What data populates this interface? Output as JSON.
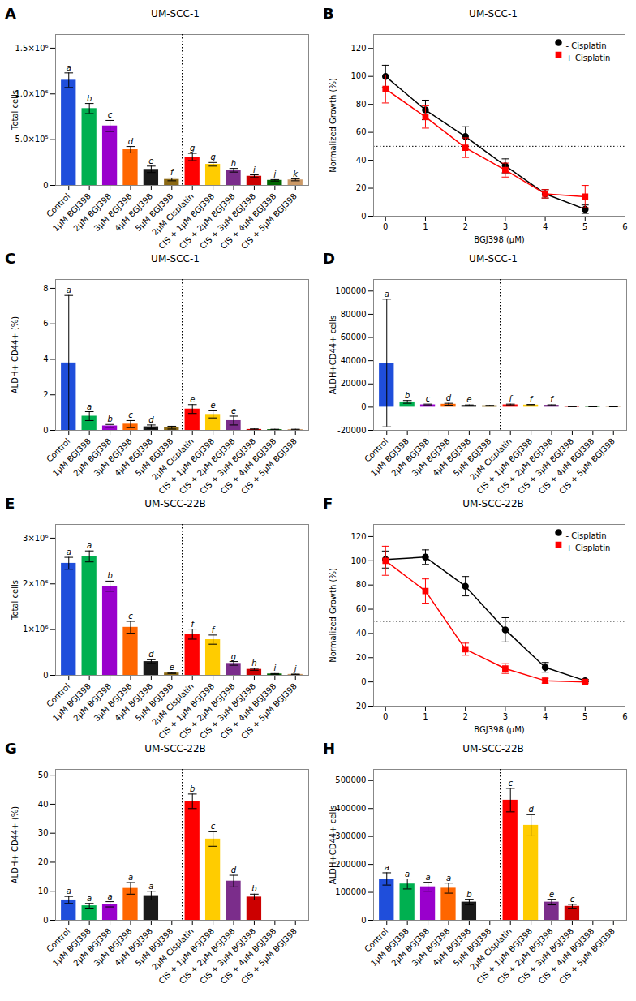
{
  "chart_data": [
    {
      "type": "bar",
      "panel_label": "A",
      "title": "UM-SCC-1",
      "ylabel": "Total cells",
      "ylim": [
        0,
        1650000
      ],
      "yticks": [
        0,
        {
          "value": 500000,
          "label": "5.0×10⁵"
        },
        {
          "value": 1000000,
          "label": "1.0×10⁶"
        },
        {
          "value": 1500000,
          "label": "1.5×10⁶"
        }
      ],
      "categories": [
        "Control",
        "1μM BGJ398",
        "2μM BGJ398",
        "3μM BGJ398",
        "4μM BGJ398",
        "5μM BGJ398",
        "2μM Cisplatin",
        "CIS + 1μM BGJ398",
        "CIS + 2μM BGJ398",
        "CIS + 3μM BGJ398",
        "CIS + 4μM BGJ398",
        "CIS + 5μM BGJ398"
      ],
      "values": [
        1150000,
        840000,
        650000,
        390000,
        175000,
        65000,
        310000,
        230000,
        165000,
        100000,
        55000,
        60000
      ],
      "errors": [
        80000,
        55000,
        60000,
        35000,
        35000,
        15000,
        40000,
        20000,
        20000,
        15000,
        8000,
        10000
      ],
      "colors": [
        "#1f4edb",
        "#00b050",
        "#9900cc",
        "#ff6600",
        "#1a1a1a",
        "#8b6914",
        "#ff0000",
        "#ffcc00",
        "#7b2d8b",
        "#cc0000",
        "#006600",
        "#cc9966"
      ],
      "letters": [
        "a",
        "b",
        "c",
        "d",
        "e",
        "f",
        "g",
        "g",
        "h",
        "i",
        "j",
        "k"
      ],
      "reference_x": 5.5
    },
    {
      "type": "line",
      "panel_label": "B",
      "title": "UM-SCC-1",
      "xlabel": "BGJ398 (μM)",
      "ylabel": "Normalized Growth (%)",
      "xlim": [
        -0.3,
        6
      ],
      "xticks": [
        0,
        1,
        2,
        3,
        4,
        5,
        6
      ],
      "ylim": [
        0,
        130
      ],
      "yticks": [
        0,
        20,
        40,
        60,
        80,
        100,
        120
      ],
      "reference_y": 50,
      "legend": "upper right",
      "series": [
        {
          "name": "- Cisplatin",
          "color": "#000000",
          "marker": "circle",
          "x": [
            0,
            1,
            2,
            3,
            4,
            5
          ],
          "values": [
            100,
            76,
            57,
            36,
            16,
            5
          ],
          "errors": [
            8,
            7,
            7,
            5,
            3,
            3
          ]
        },
        {
          "name": "+ Cisplatin",
          "color": "#ff0000",
          "marker": "square",
          "x": [
            0,
            1,
            2,
            3,
            4,
            5
          ],
          "values": [
            91,
            71,
            49,
            33,
            16,
            14
          ],
          "errors": [
            10,
            8,
            7,
            5,
            3,
            8
          ]
        }
      ]
    },
    {
      "type": "bar",
      "panel_label": "C",
      "title": "UM-SCC-1",
      "ylabel": "ALDH+ CD44+ (%)",
      "ylim": [
        0,
        8.5
      ],
      "yticks": [
        0,
        2,
        4,
        6,
        8
      ],
      "categories": [
        "Control",
        "1μM BGJ398",
        "2μM BGJ398",
        "3μM BGJ398",
        "4μM BGJ398",
        "5μM BGJ398",
        "2μM Cisplatin",
        "CIS + 1μM BGJ398",
        "CIS + 2μM BGJ398",
        "CIS + 3μM BGJ398",
        "CIS + 4μM BGJ398",
        "CIS + 5μM BGJ398"
      ],
      "values": [
        3.8,
        0.8,
        0.25,
        0.35,
        0.2,
        0.15,
        1.2,
        0.9,
        0.55,
        0.05,
        0.04,
        0.04
      ],
      "errors": [
        3.8,
        0.25,
        0.08,
        0.2,
        0.1,
        0.08,
        0.25,
        0.2,
        0.25,
        0.03,
        0.02,
        0.02
      ],
      "colors": [
        "#1f4edb",
        "#00b050",
        "#9900cc",
        "#ff6600",
        "#1a1a1a",
        "#8b6914",
        "#ff0000",
        "#ffcc00",
        "#7b2d8b",
        "#cc0000",
        "#006600",
        "#cc9966"
      ],
      "letters": [
        "a",
        "a",
        "b",
        "c",
        "d",
        null,
        "e",
        "e",
        "e",
        null,
        null,
        null
      ],
      "reference_x": 5.5
    },
    {
      "type": "bar",
      "panel_label": "D",
      "title": "UM-SCC-1",
      "ylabel": "ALDH+CD44+ cells",
      "ylim": [
        -20000,
        110000
      ],
      "yticks": [
        -20000,
        0,
        20000,
        40000,
        60000,
        80000,
        100000
      ],
      "categories": [
        "Control",
        "1μM BGJ398",
        "2μM BGJ398",
        "3μM BGJ398",
        "4μM BGJ398",
        "5μM BGJ398",
        "2μM Cisplatin",
        "CIS + 1μM BGJ398",
        "CIS + 2μM BGJ398",
        "CIS + 3μM BGJ398",
        "CIS + 4μM BGJ398",
        "CIS + 5μM BGJ398"
      ],
      "values": [
        38000,
        4500,
        2000,
        2500,
        1500,
        1200,
        2000,
        1800,
        1600,
        500,
        400,
        350
      ],
      "errors": [
        55000,
        1200,
        600,
        800,
        400,
        300,
        600,
        500,
        400,
        150,
        120,
        100
      ],
      "colors": [
        "#1f4edb",
        "#00b050",
        "#9900cc",
        "#ff6600",
        "#1a1a1a",
        "#8b6914",
        "#ff0000",
        "#ffcc00",
        "#7b2d8b",
        "#cc0000",
        "#006600",
        "#cc9966"
      ],
      "letters": [
        "a",
        "b",
        "c",
        "d",
        "e",
        null,
        "f",
        "f",
        "f",
        null,
        null,
        null
      ],
      "reference_x": 5.5
    },
    {
      "type": "bar",
      "panel_label": "E",
      "title": "UM-SCC-22B",
      "ylabel": "Total cells",
      "ylim": [
        0,
        3300000
      ],
      "yticks": [
        0,
        {
          "value": 1000000,
          "label": "1×10⁶"
        },
        {
          "value": 2000000,
          "label": "2×10⁶"
        },
        {
          "value": 3000000,
          "label": "3×10⁶"
        }
      ],
      "categories": [
        "Control",
        "1μM BGJ398",
        "2μM BGJ398",
        "3μM BGJ398",
        "4μM BGJ398",
        "5μM BGJ398",
        "2μM Cisplatin",
        "CIS + 1μM BGJ398",
        "CIS + 2μM BGJ398",
        "CIS + 3μM BGJ398",
        "CIS + 4μM BGJ398",
        "CIS + 5μM BGJ398"
      ],
      "values": [
        2450000,
        2600000,
        1950000,
        1050000,
        300000,
        50000,
        900000,
        780000,
        260000,
        130000,
        30000,
        20000
      ],
      "errors": [
        130000,
        120000,
        110000,
        130000,
        40000,
        10000,
        110000,
        100000,
        40000,
        20000,
        8000,
        6000
      ],
      "colors": [
        "#1f4edb",
        "#00b050",
        "#9900cc",
        "#ff6600",
        "#1a1a1a",
        "#8b6914",
        "#ff0000",
        "#ffcc00",
        "#7b2d8b",
        "#cc0000",
        "#006600",
        "#cc9966"
      ],
      "letters": [
        "a",
        "a",
        "b",
        "c",
        "d",
        "e",
        "f",
        "f",
        "g",
        "h",
        "i",
        "j"
      ],
      "reference_x": 5.5
    },
    {
      "type": "line",
      "panel_label": "F",
      "title": "UM-SCC-22B",
      "xlabel": "BGJ398 (μM)",
      "ylabel": "Normalized Growth (%)",
      "xlim": [
        -0.3,
        6
      ],
      "xticks": [
        0,
        1,
        2,
        3,
        4,
        5,
        6
      ],
      "ylim": [
        -20,
        130
      ],
      "yticks": [
        -20,
        0,
        20,
        40,
        60,
        80,
        100,
        120
      ],
      "reference_y": 50,
      "legend": "upper right",
      "series": [
        {
          "name": "- Cisplatin",
          "color": "#000000",
          "marker": "circle",
          "x": [
            0,
            1,
            2,
            3,
            4,
            5
          ],
          "values": [
            101,
            103,
            79,
            43,
            12,
            1
          ],
          "errors": [
            7,
            6,
            8,
            10,
            4,
            1
          ]
        },
        {
          "name": "+ Cisplatin",
          "color": "#ff0000",
          "marker": "square",
          "x": [
            0,
            1,
            2,
            3,
            4,
            5
          ],
          "values": [
            100,
            75,
            27,
            11,
            1,
            0
          ],
          "errors": [
            12,
            10,
            5,
            4,
            2,
            1
          ]
        }
      ]
    },
    {
      "type": "bar",
      "panel_label": "G",
      "title": "UM-SCC-22B",
      "ylabel": "ALDH+ CD44+ (%)",
      "ylim": [
        0,
        52
      ],
      "yticks": [
        0,
        10,
        20,
        30,
        40,
        50
      ],
      "categories": [
        "Control",
        "1μM BGJ398",
        "2μM BGJ398",
        "3μM BGJ398",
        "4μM BGJ398",
        "5μM BGJ398",
        "2μM Cisplatin",
        "CIS + 1μM BGJ398",
        "CIS + 2μM BGJ398",
        "CIS + 3μM BGJ398",
        "CIS + 4μM BGJ398",
        "CIS + 5μM BGJ398"
      ],
      "values": [
        7.0,
        5.0,
        5.5,
        11.0,
        8.5,
        0.0,
        41.0,
        28.0,
        13.5,
        8.0,
        0.0,
        0.0
      ],
      "errors": [
        1.2,
        0.8,
        0.9,
        2.0,
        1.5,
        0.0,
        2.5,
        2.5,
        2.0,
        1.0,
        0.0,
        0.0
      ],
      "colors": [
        "#1f4edb",
        "#00b050",
        "#9900cc",
        "#ff6600",
        "#1a1a1a",
        "#8b6914",
        "#ff0000",
        "#ffcc00",
        "#7b2d8b",
        "#cc0000",
        "#006600",
        "#cc9966"
      ],
      "letters": [
        "a",
        "a",
        "a",
        "a",
        "a",
        null,
        "b",
        "c",
        "d",
        "b",
        null,
        null
      ],
      "reference_x": 5.5
    },
    {
      "type": "bar",
      "panel_label": "H",
      "title": "UM-SCC-22B",
      "ylabel": "ALDH+CD44+ cells",
      "ylim": [
        0,
        540000
      ],
      "yticks": [
        0,
        100000,
        200000,
        300000,
        400000,
        500000
      ],
      "categories": [
        "Control",
        "1μM BGJ398",
        "2μM BGJ398",
        "3μM BGJ398",
        "4μM BGJ398",
        "5μM BGJ398",
        "2μM Cisplatin",
        "CIS + 1μM BGJ398",
        "CIS + 2μM BGJ398",
        "CIS + 3μM BGJ398",
        "CIS + 4μM BGJ398",
        "CIS + 5μM BGJ398"
      ],
      "values": [
        148000,
        130000,
        120000,
        115000,
        65000,
        0,
        430000,
        340000,
        65000,
        50000,
        0,
        0
      ],
      "errors": [
        22000,
        18000,
        16000,
        18000,
        10000,
        0,
        42000,
        38000,
        10000,
        7000,
        0,
        0
      ],
      "colors": [
        "#1f4edb",
        "#00b050",
        "#9900cc",
        "#ff6600",
        "#1a1a1a",
        "#8b6914",
        "#ff0000",
        "#ffcc00",
        "#7b2d8b",
        "#cc0000",
        "#006600",
        "#cc9966"
      ],
      "letters": [
        "a",
        "a",
        "a",
        "a",
        "b",
        null,
        "c",
        "d",
        "e",
        "c",
        null,
        null
      ],
      "reference_x": 5.5
    }
  ]
}
